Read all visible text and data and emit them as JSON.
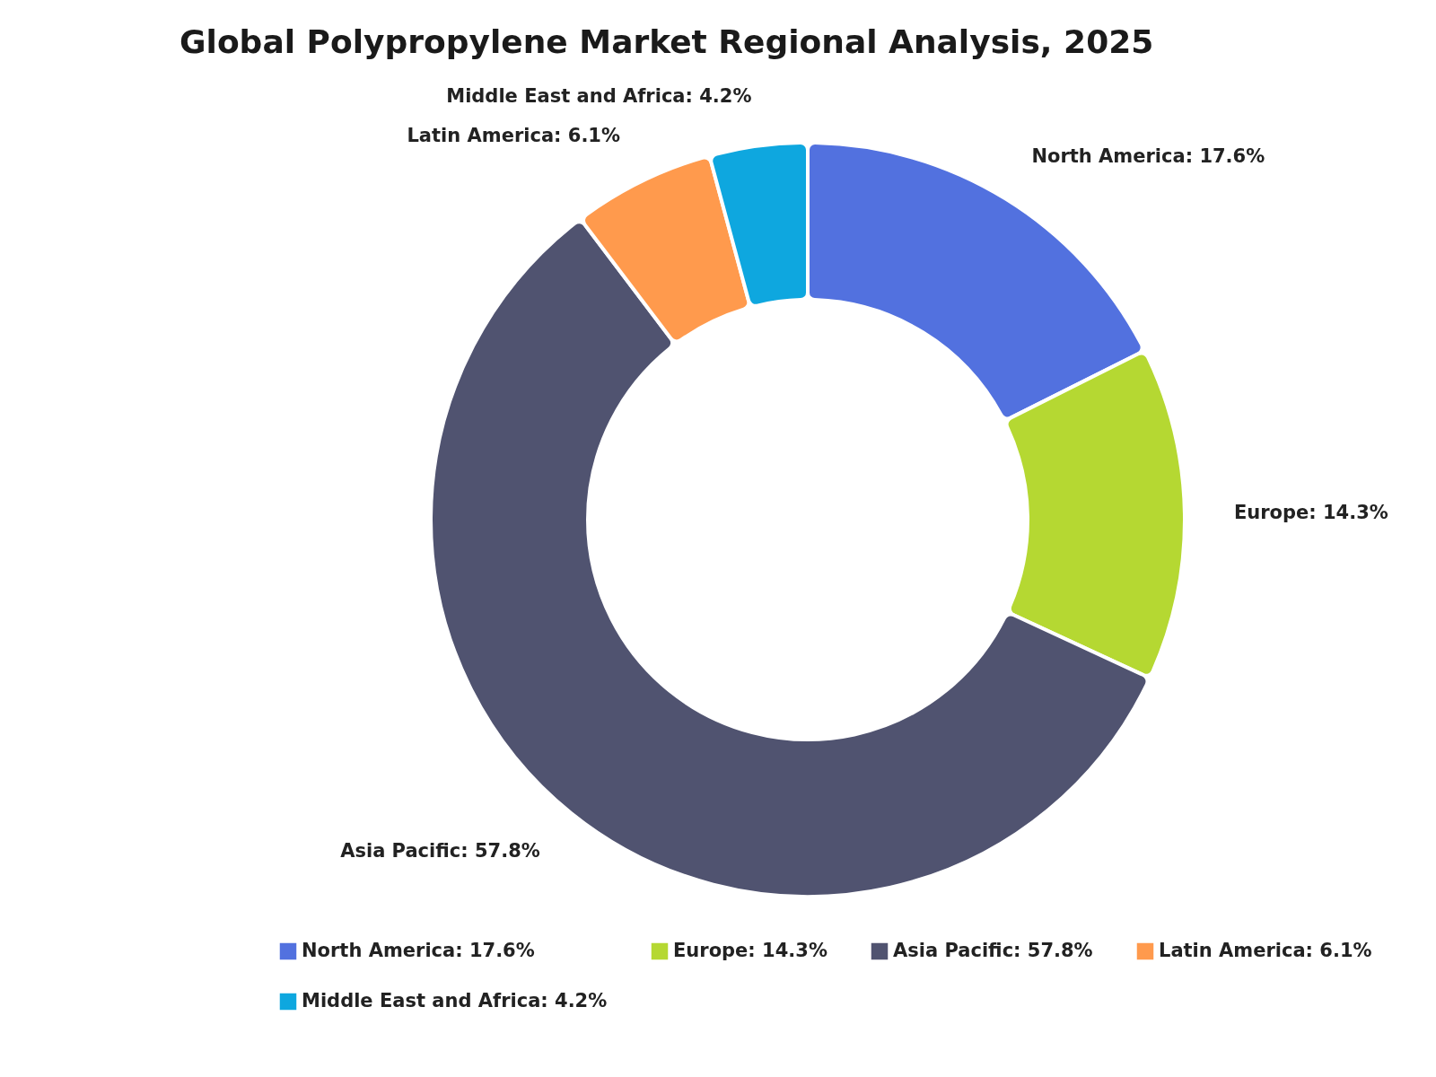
{
  "chart_data": {
    "type": "donut",
    "title": "Global Polypropylene Market Regional Analysis, 2025",
    "categories": [
      "North America: 17.6%",
      "Europe: 14.3%",
      "Asia Pacific: 57.8%",
      "Latin America: 6.1%",
      "Middle East and Africa: 4.2%"
    ],
    "values": [
      17.6,
      14.3,
      57.8,
      6.1,
      4.2
    ],
    "colors": [
      "#5271df",
      "#b5d832",
      "#505370",
      "#ff9a4d",
      "#0ea7df"
    ],
    "legend": "bottom"
  }
}
